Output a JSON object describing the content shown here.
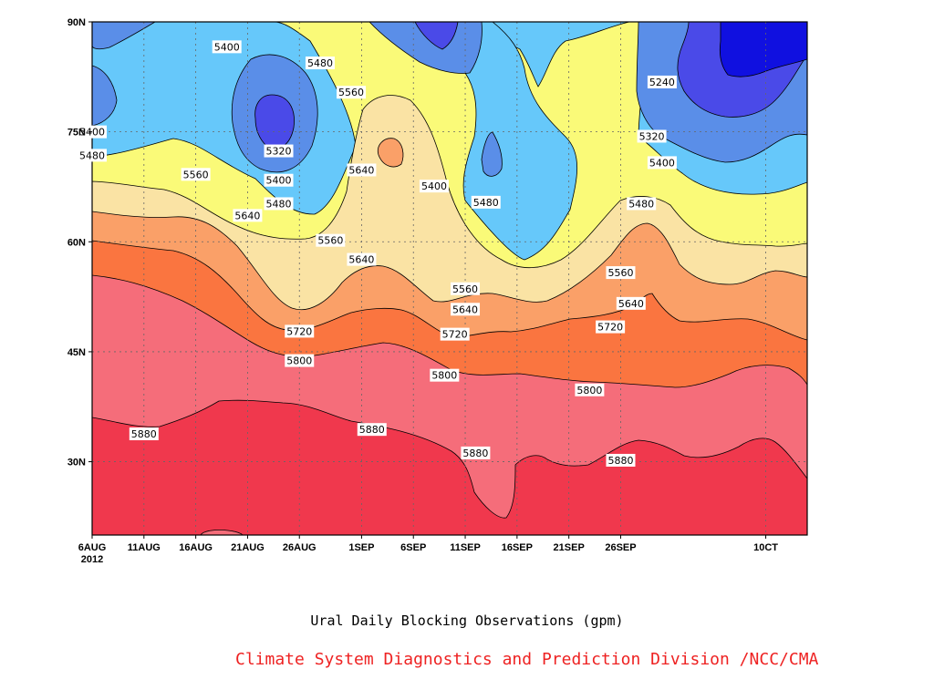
{
  "chart_data": {
    "type": "contour",
    "title": "Ural Daily Blocking Observations (gpm)",
    "credit": "Climate System Diagnostics and Prediction Division /NCC/CMA",
    "x_axis": {
      "type": "date",
      "range": [
        "2012-08-06",
        "2012-10-14"
      ],
      "tick_dates": [
        "2012-08-06",
        "2012-08-11",
        "2012-08-16",
        "2012-08-21",
        "2012-08-26",
        "2012-09-01",
        "2012-09-06",
        "2012-09-11",
        "2012-09-16",
        "2012-09-21",
        "2012-09-26",
        "2012-10-10"
      ],
      "tick_labels": [
        "6AUG",
        "11AUG",
        "16AUG",
        "21AUG",
        "26AUG",
        "1SEP",
        "6SEP",
        "11SEP",
        "16SEP",
        "21SEP",
        "26SEP",
        "10CT"
      ],
      "first_tick_year": "2012"
    },
    "y_axis": {
      "label": "",
      "range": [
        20,
        90
      ],
      "ticks": [
        30,
        45,
        60,
        75,
        90
      ],
      "tick_labels": [
        "30N",
        "45N",
        "60N",
        "75N",
        "90N"
      ]
    },
    "grid": true,
    "contour_levels": [
      5240,
      5320,
      5400,
      5480,
      5560,
      5640,
      5720,
      5800,
      5880
    ],
    "fill_colors": [
      "#1010e0",
      "#4a4ae8",
      "#5a8ee8",
      "#66c8fa",
      "#fafa78",
      "#fae3a4",
      "#faa068",
      "#fa7540",
      "#f56d7a",
      "#f0384d"
    ],
    "contour_labels": [
      {
        "value": "5400",
        "date": "2012-08-06",
        "lat": 75
      },
      {
        "value": "5480",
        "date": "2012-08-06",
        "lat": 71.8
      },
      {
        "value": "5560",
        "date": "2012-08-16",
        "lat": 69.2
      },
      {
        "value": "5640",
        "date": "2012-08-21",
        "lat": 63.6
      },
      {
        "value": "5400",
        "date": "2012-08-19",
        "lat": 86.6
      },
      {
        "value": "5320",
        "date": "2012-08-24",
        "lat": 72.4
      },
      {
        "value": "5400",
        "date": "2012-08-24",
        "lat": 68.4
      },
      {
        "value": "5480",
        "date": "2012-08-24",
        "lat": 65.2
      },
      {
        "value": "5560",
        "date": "2012-08-29",
        "lat": 60.2
      },
      {
        "value": "5640",
        "date": "2012-09-01",
        "lat": 57.6
      },
      {
        "value": "5720",
        "date": "2012-08-26",
        "lat": 47.8
      },
      {
        "value": "5800",
        "date": "2012-08-26",
        "lat": 43.8
      },
      {
        "value": "5880",
        "date": "2012-08-11",
        "lat": 33.8
      },
      {
        "value": "5880",
        "date": "2012-09-02",
        "lat": 34.4
      },
      {
        "value": "5480",
        "date": "2012-08-28",
        "lat": 84.4
      },
      {
        "value": "5560",
        "date": "2012-08-31",
        "lat": 80.4
      },
      {
        "value": "5640",
        "date": "2012-09-01",
        "lat": 69.8
      },
      {
        "value": "5400",
        "date": "2012-09-08",
        "lat": 67.6
      },
      {
        "value": "5480",
        "date": "2012-09-13",
        "lat": 65.4
      },
      {
        "value": "5560",
        "date": "2012-09-11",
        "lat": 53.6
      },
      {
        "value": "5640",
        "date": "2012-09-11",
        "lat": 50.8
      },
      {
        "value": "5720",
        "date": "2012-09-10",
        "lat": 47.4
      },
      {
        "value": "5800",
        "date": "2012-09-09",
        "lat": 41.8
      },
      {
        "value": "5880",
        "date": "2012-09-12",
        "lat": 31.2
      },
      {
        "value": "5720",
        "date": "2012-09-25",
        "lat": 48.4
      },
      {
        "value": "5800",
        "date": "2012-09-23",
        "lat": 39.8
      },
      {
        "value": "5880",
        "date": "2012-09-26",
        "lat": 30.2
      },
      {
        "value": "5560",
        "date": "2012-09-26",
        "lat": 55.8
      },
      {
        "value": "5640",
        "date": "2012-09-27",
        "lat": 51.6
      },
      {
        "value": "5480",
        "date": "2012-09-28",
        "lat": 65.2
      },
      {
        "value": "5400",
        "date": "2012-09-30",
        "lat": 70.8
      },
      {
        "value": "5320",
        "date": "2012-09-29",
        "lat": 74.4
      },
      {
        "value": "5240",
        "date": "2012-09-30",
        "lat": 81.8
      }
    ]
  }
}
